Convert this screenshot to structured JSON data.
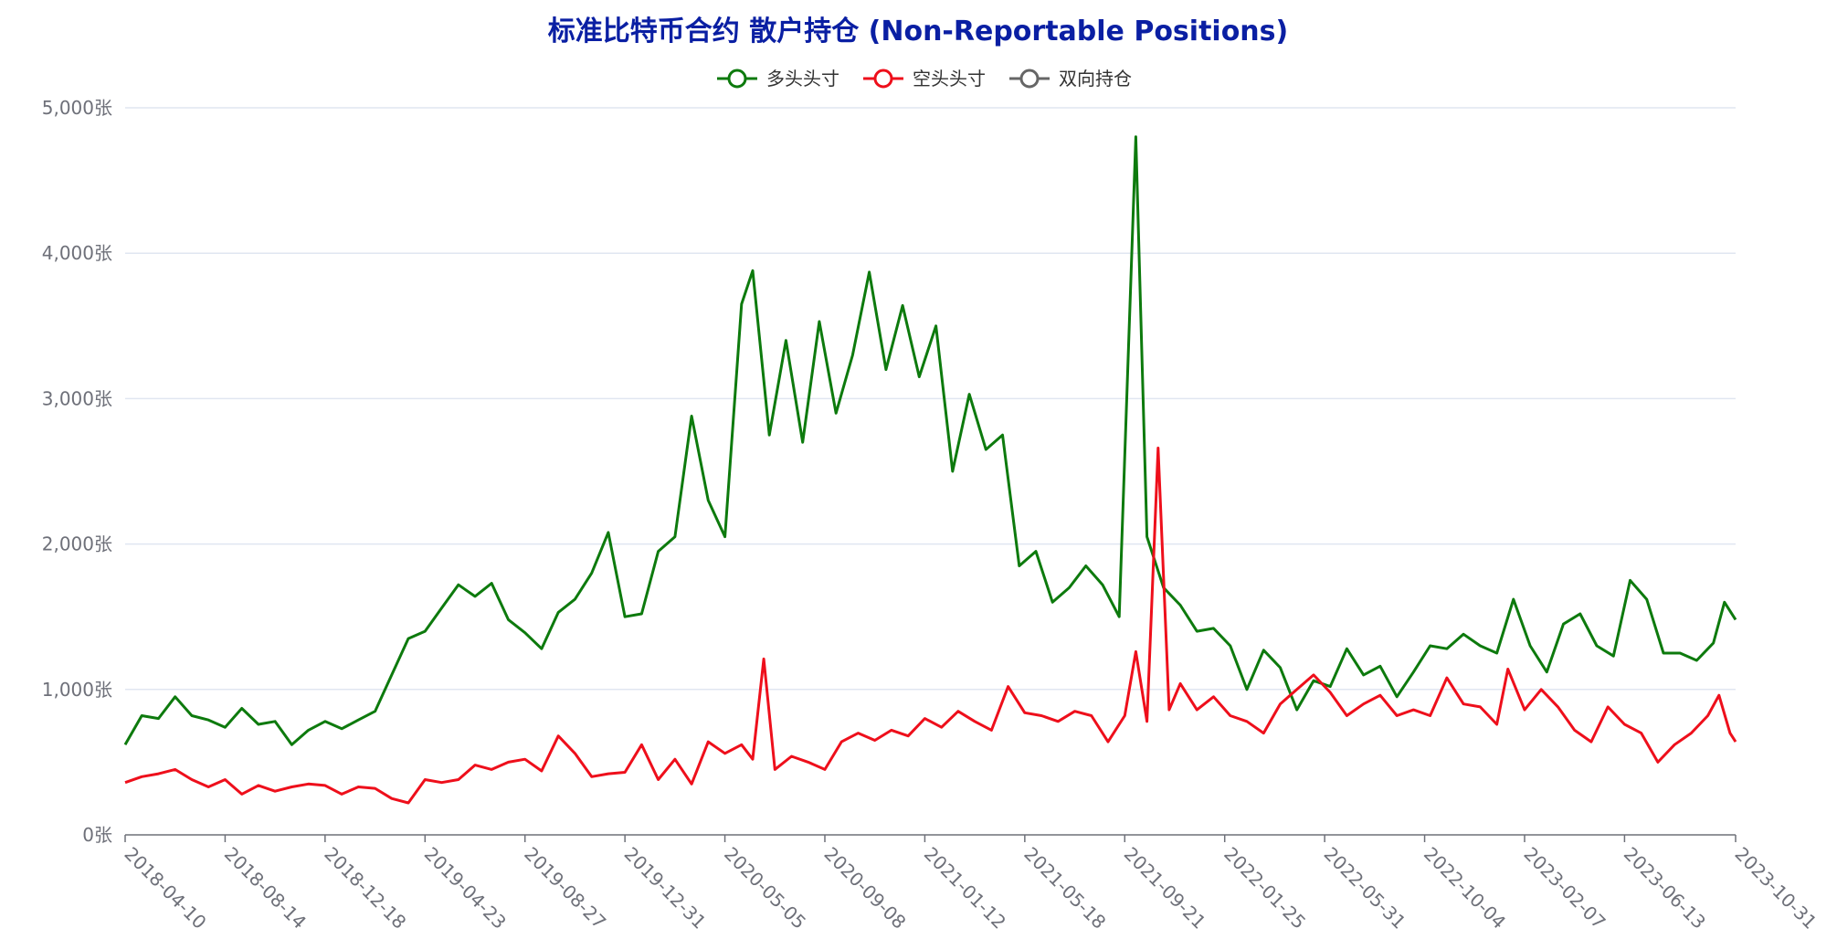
{
  "chart_data": {
    "type": "line",
    "title": "标准比特币合约 散户持仓 (Non-Reportable Positions)",
    "xlabel": "",
    "ylabel": "",
    "ylim": [
      0,
      5000
    ],
    "y_ticks": [
      {
        "value": 0,
        "label": "0张"
      },
      {
        "value": 1000,
        "label": "1,000张"
      },
      {
        "value": 2000,
        "label": "2,000张"
      },
      {
        "value": 3000,
        "label": "3,000张"
      },
      {
        "value": 4000,
        "label": "4,000张"
      },
      {
        "value": 5000,
        "label": "5,000张"
      }
    ],
    "x_range": [
      "2018-04-10",
      "2023-10-31"
    ],
    "x_ticks": [
      "2018-04-10",
      "2018-08-14",
      "2018-12-18",
      "2019-04-23",
      "2019-08-27",
      "2019-12-31",
      "2020-05-05",
      "2020-09-08",
      "2021-01-12",
      "2021-05-18",
      "2021-09-21",
      "2022-01-25",
      "2022-05-31",
      "2022-10-04",
      "2023-02-07",
      "2023-06-13",
      "2023-10-31"
    ],
    "grid": true,
    "legend_position": "top-center",
    "series": [
      {
        "name": "多头头寸",
        "color": "#0d7a0d",
        "points": [
          [
            "2018-04-10",
            620
          ],
          [
            "2018-05-01",
            820
          ],
          [
            "2018-05-22",
            800
          ],
          [
            "2018-06-12",
            950
          ],
          [
            "2018-07-03",
            820
          ],
          [
            "2018-07-24",
            790
          ],
          [
            "2018-08-14",
            740
          ],
          [
            "2018-09-04",
            870
          ],
          [
            "2018-09-25",
            760
          ],
          [
            "2018-10-16",
            780
          ],
          [
            "2018-11-06",
            620
          ],
          [
            "2018-11-27",
            720
          ],
          [
            "2018-12-18",
            780
          ],
          [
            "2019-01-08",
            730
          ],
          [
            "2019-01-29",
            790
          ],
          [
            "2019-02-19",
            850
          ],
          [
            "2019-03-12",
            1100
          ],
          [
            "2019-04-02",
            1350
          ],
          [
            "2019-04-23",
            1400
          ],
          [
            "2019-05-14",
            1560
          ],
          [
            "2019-06-04",
            1720
          ],
          [
            "2019-06-25",
            1640
          ],
          [
            "2019-07-16",
            1730
          ],
          [
            "2019-08-06",
            1480
          ],
          [
            "2019-08-27",
            1390
          ],
          [
            "2019-09-17",
            1280
          ],
          [
            "2019-10-08",
            1530
          ],
          [
            "2019-10-29",
            1620
          ],
          [
            "2019-11-19",
            1800
          ],
          [
            "2019-12-10",
            2080
          ],
          [
            "2019-12-31",
            1500
          ],
          [
            "2020-01-21",
            1520
          ],
          [
            "2020-02-11",
            1950
          ],
          [
            "2020-03-03",
            2050
          ],
          [
            "2020-03-24",
            2880
          ],
          [
            "2020-04-14",
            2300
          ],
          [
            "2020-05-05",
            2050
          ],
          [
            "2020-05-26",
            3650
          ],
          [
            "2020-06-09",
            3880
          ],
          [
            "2020-06-30",
            2750
          ],
          [
            "2020-07-21",
            3400
          ],
          [
            "2020-08-11",
            2700
          ],
          [
            "2020-09-01",
            3530
          ],
          [
            "2020-09-22",
            2900
          ],
          [
            "2020-10-13",
            3300
          ],
          [
            "2020-11-03",
            3870
          ],
          [
            "2020-11-24",
            3200
          ],
          [
            "2020-12-15",
            3640
          ],
          [
            "2021-01-05",
            3150
          ],
          [
            "2021-01-26",
            3500
          ],
          [
            "2021-02-16",
            2500
          ],
          [
            "2021-03-09",
            3030
          ],
          [
            "2021-03-30",
            2650
          ],
          [
            "2021-04-20",
            2750
          ],
          [
            "2021-05-11",
            1850
          ],
          [
            "2021-06-01",
            1950
          ],
          [
            "2021-06-22",
            1600
          ],
          [
            "2021-07-13",
            1700
          ],
          [
            "2021-08-03",
            1850
          ],
          [
            "2021-08-24",
            1720
          ],
          [
            "2021-09-14",
            1500
          ],
          [
            "2021-10-05",
            4800
          ],
          [
            "2021-10-19",
            2050
          ],
          [
            "2021-11-09",
            1700
          ],
          [
            "2021-11-30",
            1580
          ],
          [
            "2021-12-21",
            1400
          ],
          [
            "2022-01-11",
            1420
          ],
          [
            "2022-02-01",
            1300
          ],
          [
            "2022-02-22",
            1000
          ],
          [
            "2022-03-15",
            1270
          ],
          [
            "2022-04-05",
            1150
          ],
          [
            "2022-04-26",
            860
          ],
          [
            "2022-05-17",
            1060
          ],
          [
            "2022-06-07",
            1020
          ],
          [
            "2022-06-28",
            1280
          ],
          [
            "2022-07-19",
            1100
          ],
          [
            "2022-08-09",
            1160
          ],
          [
            "2022-08-30",
            950
          ],
          [
            "2022-09-20",
            1120
          ],
          [
            "2022-10-11",
            1300
          ],
          [
            "2022-11-01",
            1280
          ],
          [
            "2022-11-22",
            1380
          ],
          [
            "2022-12-13",
            1300
          ],
          [
            "2023-01-03",
            1250
          ],
          [
            "2023-01-24",
            1620
          ],
          [
            "2023-02-14",
            1300
          ],
          [
            "2023-03-07",
            1120
          ],
          [
            "2023-03-28",
            1450
          ],
          [
            "2023-04-18",
            1520
          ],
          [
            "2023-05-09",
            1300
          ],
          [
            "2023-05-30",
            1230
          ],
          [
            "2023-06-20",
            1750
          ],
          [
            "2023-07-11",
            1620
          ],
          [
            "2023-08-01",
            1250
          ],
          [
            "2023-08-22",
            1250
          ],
          [
            "2023-09-12",
            1200
          ],
          [
            "2023-10-03",
            1320
          ],
          [
            "2023-10-17",
            1600
          ],
          [
            "2023-10-31",
            1480
          ]
        ]
      },
      {
        "name": "空头头寸",
        "color": "#ee0f1b",
        "points": [
          [
            "2018-04-10",
            360
          ],
          [
            "2018-05-01",
            400
          ],
          [
            "2018-05-22",
            420
          ],
          [
            "2018-06-12",
            450
          ],
          [
            "2018-07-03",
            380
          ],
          [
            "2018-07-24",
            330
          ],
          [
            "2018-08-14",
            380
          ],
          [
            "2018-09-04",
            280
          ],
          [
            "2018-09-25",
            340
          ],
          [
            "2018-10-16",
            300
          ],
          [
            "2018-11-06",
            330
          ],
          [
            "2018-11-27",
            350
          ],
          [
            "2018-12-18",
            340
          ],
          [
            "2019-01-08",
            280
          ],
          [
            "2019-01-29",
            330
          ],
          [
            "2019-02-19",
            320
          ],
          [
            "2019-03-12",
            250
          ],
          [
            "2019-04-02",
            220
          ],
          [
            "2019-04-23",
            380
          ],
          [
            "2019-05-14",
            360
          ],
          [
            "2019-06-04",
            380
          ],
          [
            "2019-06-25",
            480
          ],
          [
            "2019-07-16",
            450
          ],
          [
            "2019-08-06",
            500
          ],
          [
            "2019-08-27",
            520
          ],
          [
            "2019-09-17",
            440
          ],
          [
            "2019-10-08",
            680
          ],
          [
            "2019-10-29",
            560
          ],
          [
            "2019-11-19",
            400
          ],
          [
            "2019-12-10",
            420
          ],
          [
            "2019-12-31",
            430
          ],
          [
            "2020-01-21",
            620
          ],
          [
            "2020-02-11",
            380
          ],
          [
            "2020-03-03",
            520
          ],
          [
            "2020-03-24",
            350
          ],
          [
            "2020-04-14",
            640
          ],
          [
            "2020-05-05",
            560
          ],
          [
            "2020-05-26",
            620
          ],
          [
            "2020-06-09",
            520
          ],
          [
            "2020-06-23",
            1210
          ],
          [
            "2020-07-07",
            450
          ],
          [
            "2020-07-28",
            540
          ],
          [
            "2020-08-18",
            500
          ],
          [
            "2020-09-08",
            450
          ],
          [
            "2020-09-29",
            640
          ],
          [
            "2020-10-20",
            700
          ],
          [
            "2020-11-10",
            650
          ],
          [
            "2020-12-01",
            720
          ],
          [
            "2020-12-22",
            680
          ],
          [
            "2021-01-12",
            800
          ],
          [
            "2021-02-02",
            740
          ],
          [
            "2021-02-23",
            850
          ],
          [
            "2021-03-16",
            780
          ],
          [
            "2021-04-06",
            720
          ],
          [
            "2021-04-27",
            1020
          ],
          [
            "2021-05-18",
            840
          ],
          [
            "2021-06-08",
            820
          ],
          [
            "2021-06-29",
            780
          ],
          [
            "2021-07-20",
            850
          ],
          [
            "2021-08-10",
            820
          ],
          [
            "2021-08-31",
            640
          ],
          [
            "2021-09-21",
            820
          ],
          [
            "2021-10-05",
            1260
          ],
          [
            "2021-10-19",
            780
          ],
          [
            "2021-11-02",
            2660
          ],
          [
            "2021-11-16",
            860
          ],
          [
            "2021-11-30",
            1040
          ],
          [
            "2021-12-21",
            860
          ],
          [
            "2022-01-11",
            950
          ],
          [
            "2022-02-01",
            820
          ],
          [
            "2022-02-22",
            780
          ],
          [
            "2022-03-15",
            700
          ],
          [
            "2022-04-05",
            900
          ],
          [
            "2022-04-26",
            1000
          ],
          [
            "2022-05-17",
            1100
          ],
          [
            "2022-06-07",
            980
          ],
          [
            "2022-06-28",
            820
          ],
          [
            "2022-07-19",
            900
          ],
          [
            "2022-08-09",
            960
          ],
          [
            "2022-08-30",
            820
          ],
          [
            "2022-09-20",
            860
          ],
          [
            "2022-10-11",
            820
          ],
          [
            "2022-11-01",
            1080
          ],
          [
            "2022-11-22",
            900
          ],
          [
            "2022-12-13",
            880
          ],
          [
            "2023-01-03",
            760
          ],
          [
            "2023-01-17",
            1140
          ],
          [
            "2023-02-07",
            860
          ],
          [
            "2023-02-28",
            1000
          ],
          [
            "2023-03-21",
            880
          ],
          [
            "2023-04-11",
            720
          ],
          [
            "2023-05-02",
            640
          ],
          [
            "2023-05-23",
            880
          ],
          [
            "2023-06-13",
            760
          ],
          [
            "2023-07-04",
            700
          ],
          [
            "2023-07-25",
            500
          ],
          [
            "2023-08-15",
            620
          ],
          [
            "2023-09-05",
            700
          ],
          [
            "2023-09-26",
            820
          ],
          [
            "2023-10-10",
            960
          ],
          [
            "2023-10-24",
            700
          ],
          [
            "2023-10-31",
            640
          ]
        ]
      },
      {
        "name": "双向持仓",
        "color": "#666666",
        "points": []
      }
    ]
  }
}
